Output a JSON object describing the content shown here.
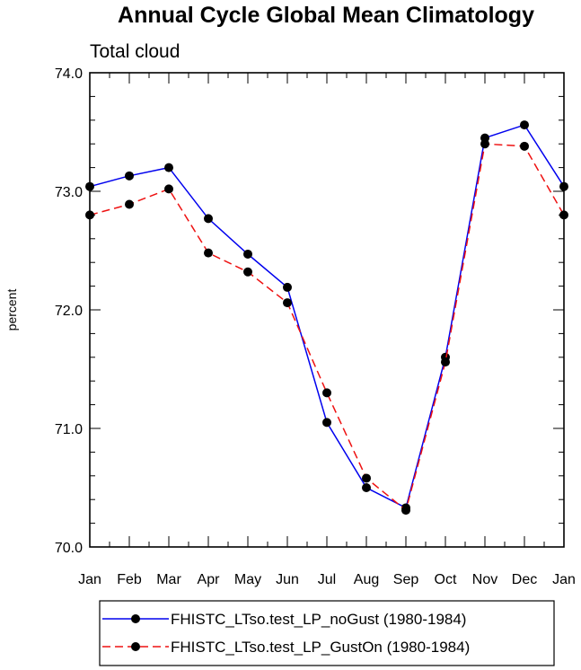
{
  "chart_data": {
    "type": "line",
    "title": "Annual Cycle Global Mean Climatology",
    "subtitle": "Total cloud",
    "xlabel": "",
    "ylabel": "percent",
    "categories": [
      "Jan",
      "Feb",
      "Mar",
      "Apr",
      "May",
      "Jun",
      "Jul",
      "Aug",
      "Sep",
      "Oct",
      "Nov",
      "Dec",
      "Jan"
    ],
    "ylim": [
      70.0,
      74.0
    ],
    "yticks": [
      "70.0",
      "71.0",
      "72.0",
      "73.0",
      "74.0"
    ],
    "series": [
      {
        "name": "FHISTC_LTso.test_LP_noGust (1980-1984)",
        "color": "#0000ee",
        "dash": "solid",
        "values": [
          73.04,
          73.13,
          73.2,
          72.77,
          72.47,
          72.19,
          71.05,
          70.5,
          70.33,
          71.6,
          73.45,
          73.56,
          73.04
        ]
      },
      {
        "name": "FHISTC_LTso.test_LP_GustOn (1980-1984)",
        "color": "#ee1111",
        "dash": "dashed",
        "values": [
          72.8,
          72.89,
          73.02,
          72.48,
          72.32,
          72.06,
          71.3,
          70.58,
          70.31,
          71.56,
          73.4,
          73.38,
          72.8
        ]
      }
    ],
    "legend_position": "bottom"
  }
}
